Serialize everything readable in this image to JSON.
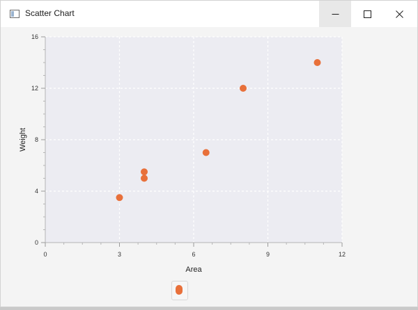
{
  "window": {
    "title": "Scatter Chart"
  },
  "chart_data": {
    "type": "scatter",
    "xlabel": "Area",
    "ylabel": "Weight",
    "xlim": [
      0,
      12
    ],
    "ylim": [
      0,
      16
    ],
    "x_ticks": [
      0,
      3,
      6,
      9,
      12
    ],
    "y_ticks": [
      0,
      4,
      8,
      12,
      16
    ],
    "grid": true,
    "legend_position": "bottom-center",
    "point_color": "#e8703a",
    "series": [
      {
        "points": [
          {
            "x": 3,
            "y": 3.5
          },
          {
            "x": 4,
            "y": 5
          },
          {
            "x": 4,
            "y": 5.5
          },
          {
            "x": 6.5,
            "y": 7
          },
          {
            "x": 8,
            "y": 12
          },
          {
            "x": 11,
            "y": 14
          }
        ]
      }
    ]
  }
}
